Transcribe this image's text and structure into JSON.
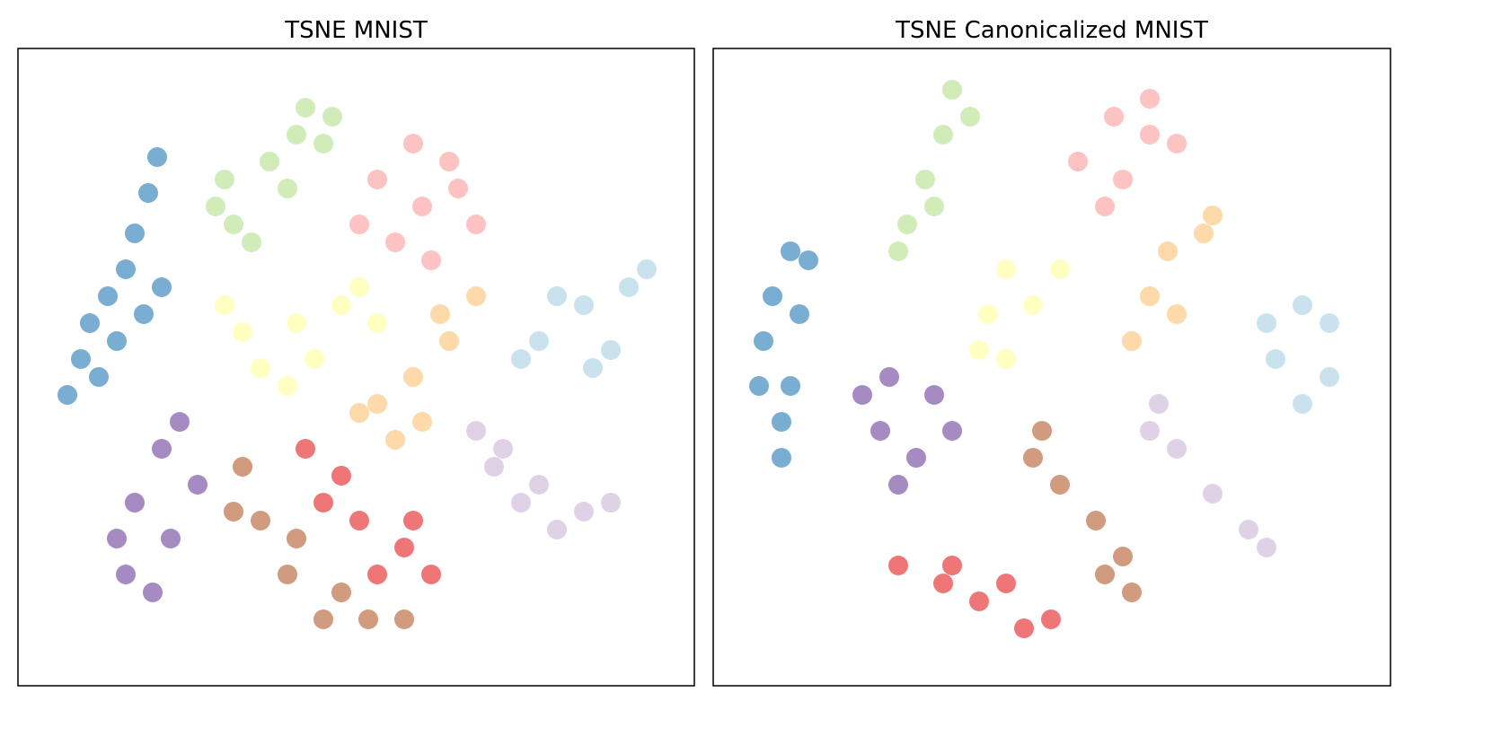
{
  "chart_data": [
    {
      "type": "scatter",
      "title": "TSNE MNIST",
      "xlim": [
        0,
        753
      ],
      "ylim": [
        0,
        710
      ],
      "series": [
        {
          "color": "#1f78b4",
          "x": [
            155,
            145,
            130,
            120,
            100,
            80,
            70,
            55,
            140,
            110,
            90,
            160
          ],
          "y": [
            589,
            549,
            504,
            464,
            434,
            404,
            364,
            324,
            414,
            384,
            344,
            444
          ]
        },
        {
          "color": "#b2df8a",
          "x": [
            320,
            340,
            280,
            230,
            240,
            300,
            350,
            220,
            260,
            310
          ],
          "y": [
            644,
            604,
            584,
            564,
            514,
            554,
            634,
            534,
            494,
            614
          ]
        },
        {
          "color": "#fb9a99",
          "x": [
            450,
            400,
            480,
            510,
            420,
            460,
            380,
            490,
            440
          ],
          "y": [
            534,
            564,
            584,
            514,
            494,
            474,
            514,
            554,
            604
          ]
        },
        {
          "color": "#ffff99",
          "x": [
            310,
            250,
            270,
            360,
            400,
            330,
            230,
            380,
            300
          ],
          "y": [
            404,
            394,
            354,
            424,
            404,
            364,
            424,
            444,
            334
          ]
        },
        {
          "color": "#fdbf6f",
          "x": [
            400,
            440,
            480,
            510,
            450,
            380,
            470,
            420
          ],
          "y": [
            314,
            344,
            384,
            434,
            294,
            304,
            414,
            274
          ]
        },
        {
          "color": "#a6cee3",
          "x": [
            630,
            680,
            580,
            660,
            700,
            600,
            560,
            640
          ],
          "y": [
            424,
            444,
            384,
            374,
            464,
            434,
            364,
            354
          ]
        },
        {
          "color": "#cab2d6",
          "x": [
            540,
            580,
            630,
            510,
            600,
            560,
            660,
            530
          ],
          "y": [
            264,
            224,
            194,
            284,
            174,
            204,
            204,
            244
          ]
        },
        {
          "color": "#6a3d9a",
          "x": [
            160,
            130,
            170,
            120,
            180,
            150,
            110,
            200
          ],
          "y": [
            264,
            204,
            164,
            124,
            294,
            104,
            164,
            224
          ]
        },
        {
          "color": "#b15928",
          "x": [
            250,
            270,
            300,
            340,
            390,
            430,
            240,
            310,
            360
          ],
          "y": [
            244,
            184,
            124,
            74,
            74,
            74,
            194,
            164,
            104
          ]
        },
        {
          "color": "#e31a1c",
          "x": [
            320,
            360,
            380,
            430,
            460,
            400,
            340,
            440
          ],
          "y": [
            264,
            234,
            184,
            154,
            124,
            124,
            204,
            184
          ]
        }
      ]
    },
    {
      "type": "scatter",
      "title": "TSNE Canonicalized MNIST",
      "xlim": [
        0,
        754
      ],
      "ylim": [
        0,
        710
      ],
      "series": [
        {
          "color": "#1f78b4",
          "x": [
            86,
            66,
            56,
            51,
            76,
            76,
            106,
            96,
            86
          ],
          "y": [
            484,
            434,
            384,
            334,
            294,
            254,
            474,
            414,
            334
          ]
        },
        {
          "color": "#b2df8a",
          "x": [
            266,
            256,
            236,
            216,
            206,
            286,
            246
          ],
          "y": [
            664,
            614,
            564,
            514,
            484,
            634,
            534
          ]
        },
        {
          "color": "#fb9a99",
          "x": [
            446,
            486,
            406,
            456,
            516,
            436,
            486
          ],
          "y": [
            634,
            614,
            584,
            564,
            604,
            534,
            654
          ]
        },
        {
          "color": "#ffff99",
          "x": [
            326,
            306,
            356,
            326,
            386,
            296
          ],
          "y": [
            464,
            414,
            424,
            364,
            464,
            374
          ]
        },
        {
          "color": "#fdbf6f",
          "x": [
            506,
            546,
            486,
            466,
            516,
            556
          ],
          "y": [
            484,
            504,
            434,
            384,
            414,
            524
          ]
        },
        {
          "color": "#a6cee3",
          "x": [
            656,
            686,
            626,
            656,
            616,
            686
          ],
          "y": [
            424,
            404,
            364,
            314,
            404,
            344
          ]
        },
        {
          "color": "#cab2d6",
          "x": [
            496,
            516,
            556,
            596,
            616,
            486
          ],
          "y": [
            314,
            264,
            214,
            174,
            154,
            284
          ]
        },
        {
          "color": "#6a3d9a",
          "x": [
            196,
            186,
            226,
            266,
            206,
            166,
            246
          ],
          "y": [
            344,
            284,
            254,
            284,
            224,
            324,
            324
          ]
        },
        {
          "color": "#b15928",
          "x": [
            366,
            386,
            426,
            456,
            466,
            356,
            436
          ],
          "y": [
            284,
            224,
            184,
            144,
            104,
            254,
            124
          ]
        },
        {
          "color": "#e31a1c",
          "x": [
            206,
            256,
            296,
            346,
            376,
            326,
            266
          ],
          "y": [
            134,
            114,
            94,
            64,
            74,
            114,
            134
          ]
        }
      ]
    }
  ]
}
